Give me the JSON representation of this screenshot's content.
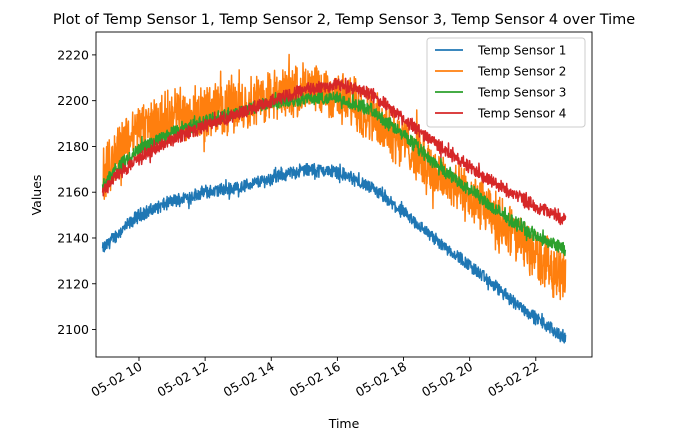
{
  "chart_data": {
    "type": "line",
    "title": "Plot of Temp Sensor 1, Temp Sensor 2, Temp Sensor 3, Temp Sensor 4 over Time",
    "xlabel": "Time",
    "ylabel": "Values",
    "x_ticks": [
      "05-02 10",
      "05-02 12",
      "05-02 14",
      "05-02 16",
      "05-02 18",
      "05-02 20",
      "05-02 22"
    ],
    "x_tick_hours": [
      10,
      12,
      14,
      16,
      18,
      20,
      22
    ],
    "xlim": [
      8.7,
      23.7
    ],
    "y_ticks": [
      2100,
      2120,
      2140,
      2160,
      2180,
      2200,
      2220
    ],
    "ylim": [
      2088,
      2230
    ],
    "grid": false,
    "legend_position": "top-right",
    "series": [
      {
        "name": "Temp Sensor 1",
        "color": "#1f77b4",
        "noise": 2.5,
        "x": [
          8.9,
          9.3,
          10.0,
          11.0,
          12.0,
          13.0,
          14.0,
          15.0,
          16.0,
          17.0,
          18.0,
          19.0,
          20.0,
          21.0,
          22.0,
          22.9
        ],
        "values": [
          2135,
          2141,
          2150,
          2156,
          2160,
          2162,
          2166,
          2170,
          2169,
          2162,
          2151,
          2139,
          2128,
          2116,
          2105,
          2096
        ]
      },
      {
        "name": "Temp Sensor 2",
        "color": "#ff7f0e",
        "noise": 10,
        "x": [
          8.9,
          9.3,
          10.0,
          11.0,
          12.0,
          13.0,
          14.0,
          15.0,
          16.0,
          17.0,
          18.0,
          19.0,
          20.0,
          21.0,
          22.0,
          22.9
        ],
        "values": [
          2165,
          2178,
          2188,
          2193,
          2195,
          2198,
          2202,
          2205,
          2202,
          2194,
          2182,
          2168,
          2158,
          2146,
          2132,
          2123
        ]
      },
      {
        "name": "Temp Sensor 3",
        "color": "#2ca02c",
        "noise": 2.5,
        "x": [
          8.9,
          9.3,
          10.0,
          11.0,
          12.0,
          13.0,
          14.0,
          15.0,
          16.0,
          17.0,
          18.0,
          19.0,
          20.0,
          21.0,
          22.0,
          22.9
        ],
        "values": [
          2163,
          2170,
          2179,
          2186,
          2191,
          2195,
          2199,
          2201,
          2201,
          2196,
          2185,
          2172,
          2161,
          2150,
          2141,
          2135
        ]
      },
      {
        "name": "Temp Sensor 4",
        "color": "#d62728",
        "noise": 2.5,
        "x": [
          8.9,
          9.3,
          10.0,
          11.0,
          12.0,
          13.0,
          14.0,
          15.0,
          16.0,
          17.0,
          18.0,
          19.0,
          20.0,
          21.0,
          22.0,
          22.9
        ],
        "values": [
          2160,
          2167,
          2175,
          2183,
          2189,
          2194,
          2200,
          2205,
          2207,
          2203,
          2192,
          2181,
          2171,
          2162,
          2154,
          2148
        ]
      }
    ]
  }
}
